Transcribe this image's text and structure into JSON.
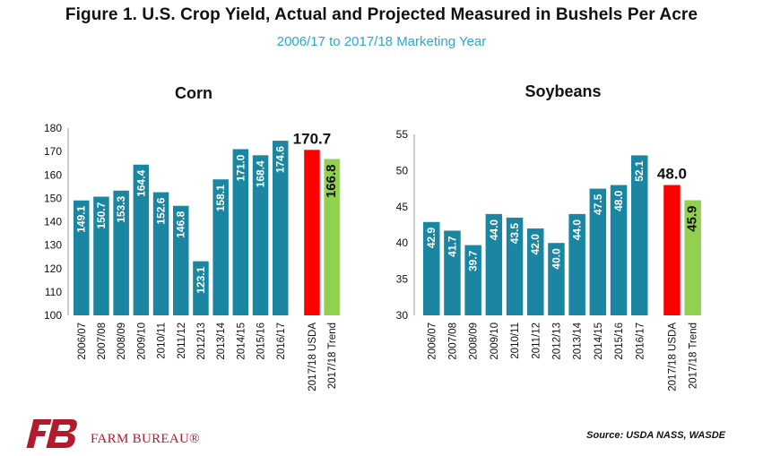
{
  "header": {
    "title": "Figure 1. U.S. Crop Yield, Actual and Projected Measured in Bushels Per Acre",
    "subtitle": "2006/17 to 2017/18 Marketing Year"
  },
  "footer": {
    "source": "Source: USDA NASS, WASDE",
    "org_name": "FARM BUREAU®",
    "logo_text": "FB"
  },
  "colors": {
    "actual": "#1a86a1",
    "usda": "#ff0000",
    "trend": "#92d050",
    "title": "#111111",
    "subtitle": "#29a9cf"
  },
  "chart_data": [
    {
      "type": "bar",
      "title": "Corn",
      "categories": [
        "2006/07",
        "2007/08",
        "2008/09",
        "2009/10",
        "2010/11",
        "2011/12",
        "2012/13",
        "2013/14",
        "2014/15",
        "2015/16",
        "2016/17",
        "2017/18 USDA",
        "2017/18 Trend"
      ],
      "values": [
        149.1,
        150.7,
        153.3,
        164.4,
        152.6,
        146.8,
        123.1,
        158.1,
        171.0,
        168.4,
        174.6,
        170.7,
        166.8
      ],
      "labels": [
        "149.1",
        "150.7",
        "153.3",
        "164.4",
        "152.6",
        "146.8",
        "123.1",
        "158.1",
        "171.0",
        "168.4",
        "174.6",
        "170.7",
        "166.8"
      ],
      "bar_kinds": [
        "actual",
        "actual",
        "actual",
        "actual",
        "actual",
        "actual",
        "actual",
        "actual",
        "actual",
        "actual",
        "actual",
        "usda",
        "trend"
      ],
      "ylim": [
        100,
        180
      ],
      "yticks": [
        100,
        110,
        120,
        130,
        140,
        150,
        160,
        170,
        180
      ],
      "grid": false
    },
    {
      "type": "bar",
      "title": "Soybeans",
      "categories": [
        "2006/07",
        "2007/08",
        "2008/09",
        "2009/10",
        "2010/11",
        "2011/12",
        "2012/13",
        "2013/14",
        "2014/15",
        "2015/16",
        "2016/17",
        "2017/18 USDA",
        "2017/18 Trend"
      ],
      "values": [
        42.9,
        41.7,
        39.7,
        44.0,
        43.5,
        42.0,
        40.0,
        44.0,
        47.5,
        48.0,
        52.1,
        48.0,
        45.9
      ],
      "labels": [
        "42.9",
        "41.7",
        "39.7",
        "44.0",
        "43.5",
        "42.0",
        "40.0",
        "44.0",
        "47.5",
        "48.0",
        "52.1",
        "48.0",
        "45.9"
      ],
      "bar_kinds": [
        "actual",
        "actual",
        "actual",
        "actual",
        "actual",
        "actual",
        "actual",
        "actual",
        "actual",
        "actual",
        "actual",
        "usda",
        "trend"
      ],
      "ylim": [
        30,
        55
      ],
      "yticks": [
        30,
        35,
        40,
        45,
        50,
        55
      ],
      "grid": false
    }
  ]
}
